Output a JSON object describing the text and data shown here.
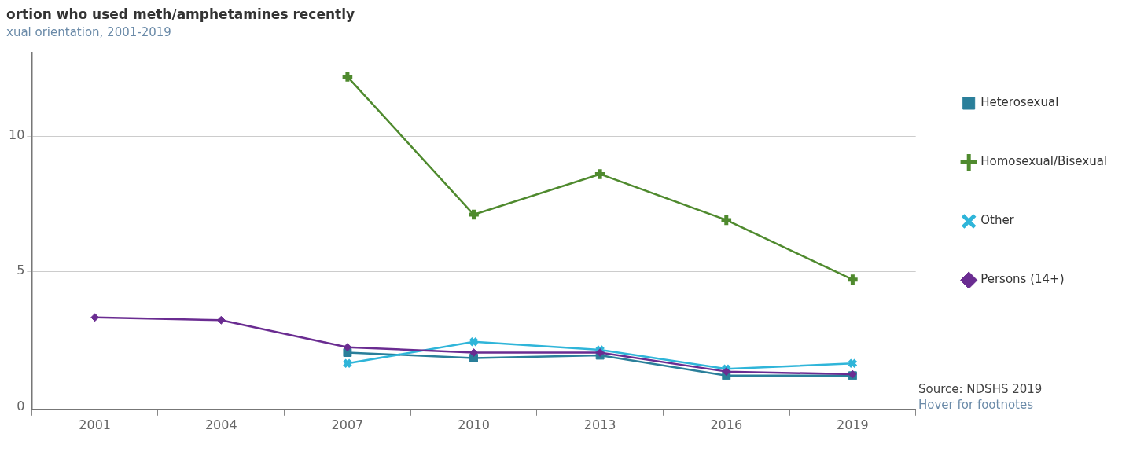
{
  "chart_data": {
    "type": "line",
    "title": "ortion who used meth/amphetamines recently",
    "subtitle": "xual orientation, 2001-2019",
    "categories": [
      "2001",
      "2004",
      "2007",
      "2010",
      "2013",
      "2016",
      "2019"
    ],
    "series": [
      {
        "name": "Heterosexual",
        "color": "#2a7f9a",
        "marker": "square",
        "values": [
          null,
          null,
          2.0,
          1.8,
          1.9,
          1.15,
          1.15
        ]
      },
      {
        "name": "Homosexual/Bisexual",
        "color": "#4f8a2e",
        "marker": "cross",
        "values": [
          null,
          null,
          12.2,
          7.1,
          8.6,
          6.9,
          4.7
        ]
      },
      {
        "name": "Other",
        "color": "#2fb5d9",
        "marker": "x",
        "values": [
          null,
          null,
          1.6,
          2.4,
          2.1,
          1.4,
          1.6
        ]
      },
      {
        "name": "Persons (14+)",
        "color": "#6a2c91",
        "marker": "diamond",
        "values": [
          3.3,
          3.2,
          2.2,
          2.0,
          2.0,
          1.3,
          1.2
        ]
      }
    ],
    "ylim": [
      -0.1,
      13.1
    ],
    "yticks": [
      0,
      5,
      10
    ],
    "grid": "y",
    "legend": "right",
    "line_style": "solid",
    "annotations": [
      "Source: NDSHS 2019",
      "Hover for footnotes"
    ]
  }
}
